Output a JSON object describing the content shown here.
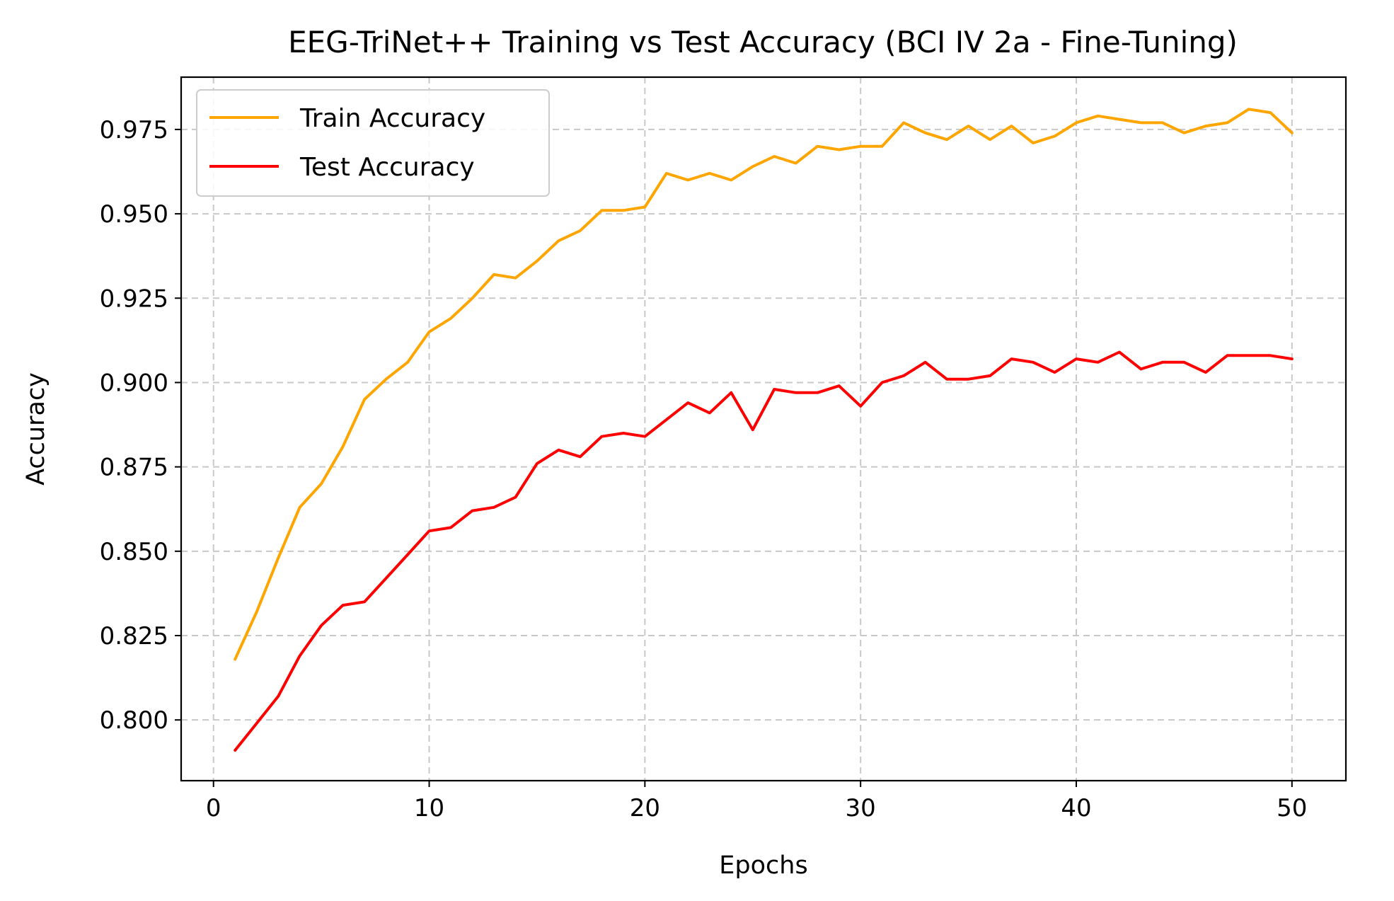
{
  "chart_data": {
    "type": "line",
    "title": "EEG-TriNet++ Training vs Test Accuracy (BCI IV 2a - Fine-Tuning)",
    "xlabel": "Epochs",
    "ylabel": "Accuracy",
    "xlim": [
      -1.5,
      52.5
    ],
    "ylim": [
      0.782,
      0.9905
    ],
    "xticks": [
      0,
      10,
      20,
      30,
      40,
      50
    ],
    "yticks": [
      0.8,
      0.825,
      0.85,
      0.875,
      0.9,
      0.925,
      0.95,
      0.975
    ],
    "ytick_labels": [
      "0.800",
      "0.825",
      "0.850",
      "0.875",
      "0.900",
      "0.925",
      "0.950",
      "0.975"
    ],
    "xtick_labels": [
      "0",
      "10",
      "20",
      "30",
      "40",
      "50"
    ],
    "grid": true,
    "legend_position": "top-left",
    "x": [
      1,
      2,
      3,
      4,
      5,
      6,
      7,
      8,
      9,
      10,
      11,
      12,
      13,
      14,
      15,
      16,
      17,
      18,
      19,
      20,
      21,
      22,
      23,
      24,
      25,
      26,
      27,
      28,
      29,
      30,
      31,
      32,
      33,
      34,
      35,
      36,
      37,
      38,
      39,
      40,
      41,
      42,
      43,
      44,
      45,
      46,
      47,
      48,
      49,
      50
    ],
    "series": [
      {
        "name": "Train Accuracy",
        "color": "#ffa500",
        "values": [
          0.818,
          0.832,
          0.848,
          0.863,
          0.87,
          0.881,
          0.895,
          0.901,
          0.906,
          0.915,
          0.919,
          0.925,
          0.932,
          0.931,
          0.936,
          0.942,
          0.945,
          0.951,
          0.951,
          0.952,
          0.962,
          0.96,
          0.962,
          0.96,
          0.964,
          0.967,
          0.965,
          0.97,
          0.969,
          0.97,
          0.97,
          0.977,
          0.974,
          0.972,
          0.976,
          0.972,
          0.976,
          0.971,
          0.973,
          0.977,
          0.979,
          0.978,
          0.977,
          0.977,
          0.974,
          0.976,
          0.977,
          0.981,
          0.98,
          0.974
        ]
      },
      {
        "name": "Test Accuracy",
        "color": "#ff0000",
        "values": [
          0.791,
          0.799,
          0.807,
          0.819,
          0.828,
          0.834,
          0.835,
          0.842,
          0.849,
          0.856,
          0.857,
          0.862,
          0.863,
          0.866,
          0.876,
          0.88,
          0.878,
          0.884,
          0.885,
          0.884,
          0.889,
          0.894,
          0.891,
          0.897,
          0.886,
          0.898,
          0.897,
          0.897,
          0.899,
          0.893,
          0.9,
          0.902,
          0.906,
          0.901,
          0.901,
          0.902,
          0.907,
          0.906,
          0.903,
          0.907,
          0.906,
          0.909,
          0.904,
          0.906,
          0.906,
          0.903,
          0.908,
          0.908,
          0.908,
          0.907
        ]
      }
    ]
  }
}
